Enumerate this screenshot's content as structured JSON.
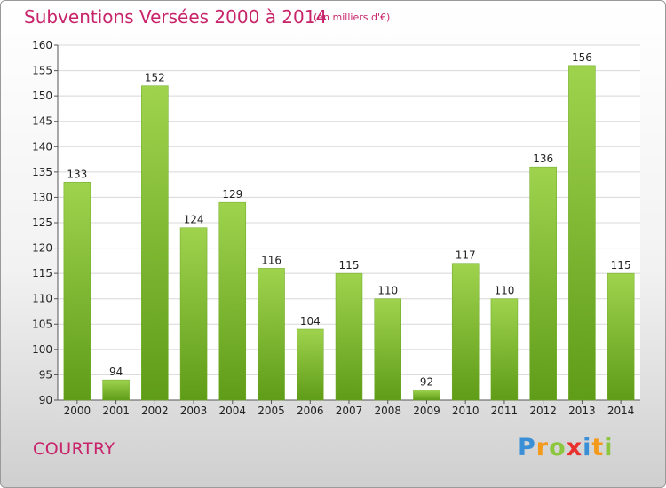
{
  "title": "Subventions Versées 2000 à 2014",
  "subtitle": "(en milliers d'€)",
  "city": "COURTRY",
  "logo": {
    "letters": [
      {
        "ch": "P",
        "color": "#3a8fd6"
      },
      {
        "ch": "r",
        "color": "#f39a1a"
      },
      {
        "ch": "o",
        "color": "#8cc63f"
      },
      {
        "ch": "x",
        "color": "#e8312f"
      },
      {
        "ch": "i",
        "color": "#3a8fd6"
      },
      {
        "ch": "t",
        "color": "#f39a1a"
      },
      {
        "ch": "i",
        "color": "#8cc63f"
      }
    ]
  },
  "chart_data": {
    "type": "bar",
    "title": "Subventions Versées 2000 à 2014",
    "subtitle": "(en milliers d'€)",
    "categories": [
      "2000",
      "2001",
      "2002",
      "2003",
      "2004",
      "2005",
      "2006",
      "2007",
      "2008",
      "2009",
      "2010",
      "2011",
      "2012",
      "2013",
      "2014"
    ],
    "values": [
      133,
      94,
      152,
      124,
      129,
      116,
      104,
      115,
      110,
      92,
      117,
      110,
      136,
      156,
      115
    ],
    "ylim": [
      90,
      160
    ],
    "yticks": [
      90,
      95,
      100,
      105,
      110,
      115,
      120,
      125,
      130,
      135,
      140,
      145,
      150,
      155,
      160
    ],
    "grid": true,
    "bar_color": "#7fbf30"
  }
}
